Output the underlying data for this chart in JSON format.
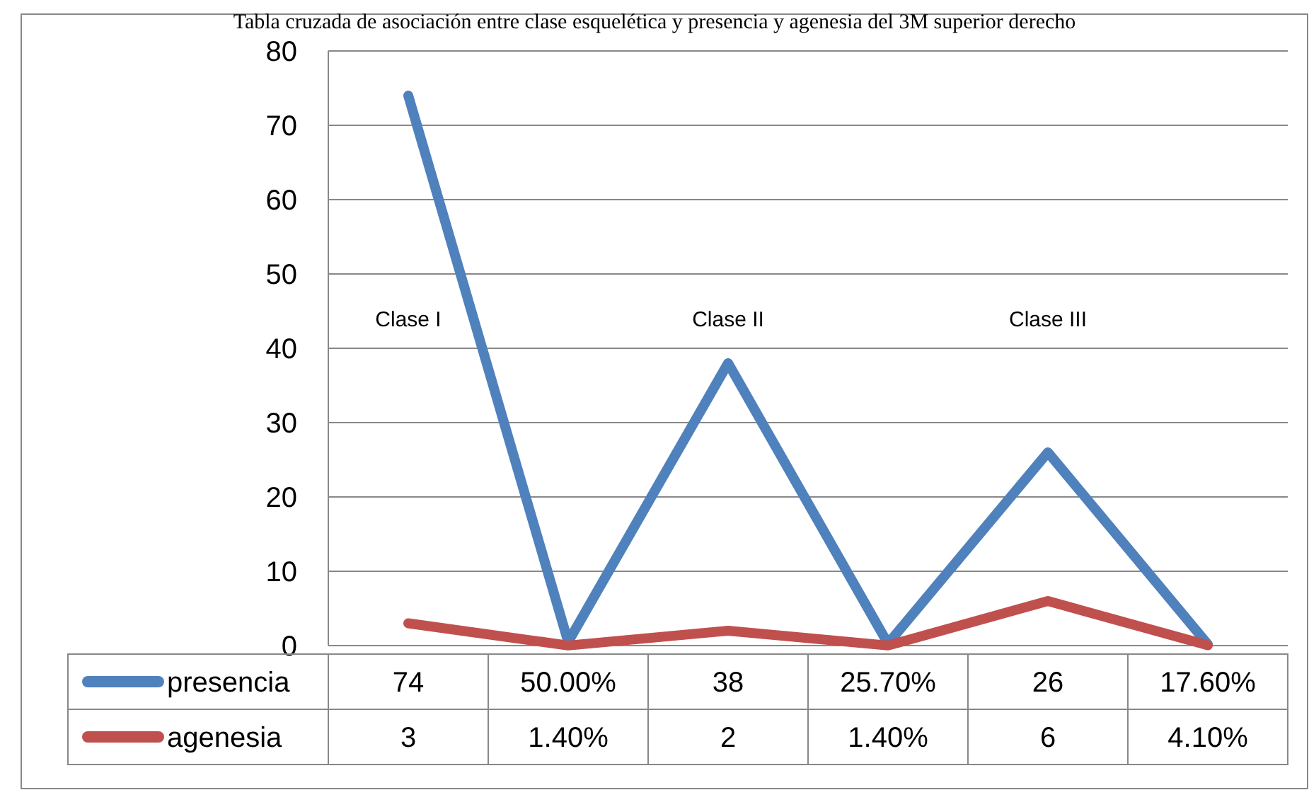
{
  "chart_data": {
    "type": "line",
    "title": "Tabla cruzada de asociación entre clase esquelética y presencia y agenesia del 3M superior derecho",
    "categories": [
      null,
      null,
      null,
      null,
      null,
      null
    ],
    "series": [
      {
        "name": "presencia",
        "color": "#4f81bd",
        "values": [
          74,
          0.5,
          38,
          0.257,
          26,
          0.176
        ],
        "value_labels": [
          "74",
          "50.00%",
          "38",
          "25.70%",
          "26",
          "17.60%"
        ]
      },
      {
        "name": "agenesia",
        "color": "#c0504d",
        "values": [
          3,
          0.014,
          2,
          0.014,
          6,
          0.041
        ],
        "value_labels": [
          "3",
          "1.40%",
          "2",
          "1.40%",
          "6",
          "4.10%"
        ]
      }
    ],
    "ylim": [
      0,
      80
    ],
    "yticks": [
      0,
      10,
      20,
      30,
      40,
      50,
      60,
      70,
      80
    ],
    "grid": "y",
    "legend": "bottom",
    "line_style": "solid",
    "annotations": [
      "Clase I",
      "Clase II",
      "Clase III"
    ]
  }
}
